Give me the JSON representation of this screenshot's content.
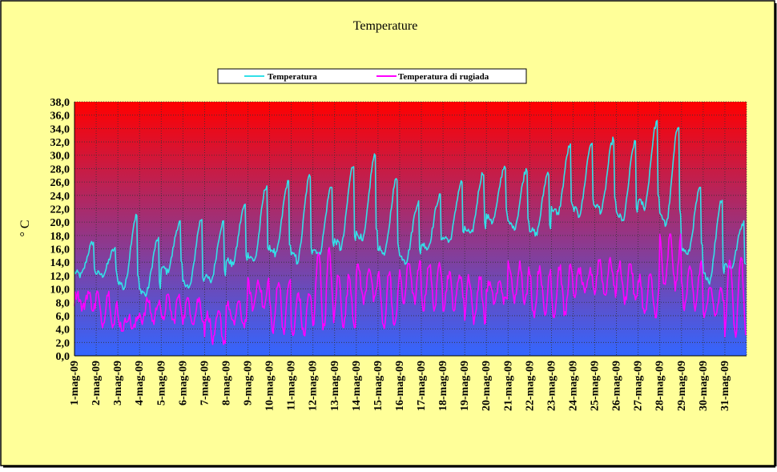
{
  "chart_data": {
    "type": "line",
    "title": "Temperature",
    "xlabel": "",
    "ylabel": "° C",
    "ylim": [
      0,
      38
    ],
    "ytick_step": 2,
    "yticks": [
      "0,0",
      "2,0",
      "4,0",
      "6,0",
      "8,0",
      "10,0",
      "12,0",
      "14,0",
      "16,0",
      "18,0",
      "20,0",
      "22,0",
      "24,0",
      "26,0",
      "28,0",
      "30,0",
      "32,0",
      "34,0",
      "36,0",
      "38,0"
    ],
    "categories": [
      "1-mag-09",
      "2-mag-09",
      "3-mag-09",
      "4-mag-09",
      "5-mag-09",
      "6-mag-09",
      "7-mag-09",
      "8-mag-09",
      "9-mag-09",
      "10-mag-09",
      "11-mag-09",
      "12-mag-09",
      "13-mag-09",
      "14-mag-09",
      "15-mag-09",
      "16-mag-09",
      "17-mag-09",
      "18-mag-09",
      "19-mag-09",
      "20-mag-09",
      "21-mag-09",
      "22-mag-09",
      "23-mag-09",
      "24-mag-09",
      "25-mag-09",
      "26-mag-09",
      "27-mag-09",
      "28-mag-09",
      "29-mag-09",
      "30-mag-09",
      "31-mag-09"
    ],
    "grid": true,
    "legend_position": "top-center",
    "series": [
      {
        "name": "Temperatura",
        "color": "#33e0e8",
        "daily_min": [
          12.0,
          12.0,
          10.0,
          9.0,
          12.5,
          10.0,
          11.0,
          13.5,
          14.0,
          15.0,
          14.0,
          15.0,
          16.0,
          17.0,
          15.0,
          14.0,
          16.0,
          17.0,
          18.0,
          20.0,
          19.0,
          18.0,
          21.0,
          21.0,
          21.5,
          20.0,
          22.0,
          19.5,
          15.0,
          11.0,
          13.0
        ],
        "daily_max": [
          17.0,
          16.0,
          21.0,
          17.5,
          20.0,
          20.5,
          20.0,
          22.5,
          25.5,
          26.0,
          27.0,
          25.5,
          28.5,
          30.0,
          26.5,
          23.0,
          24.0,
          26.0,
          27.5,
          28.5,
          28.0,
          27.5,
          31.5,
          32.0,
          32.5,
          32.0,
          35.0,
          34.5,
          25.0,
          23.5,
          20.0
        ]
      },
      {
        "name": "Temperatura di rugiada",
        "color": "#ff00ff",
        "daily_min": [
          7.0,
          4.5,
          4.0,
          5.0,
          5.0,
          5.0,
          2.0,
          4.5,
          7.0,
          3.5,
          3.0,
          4.0,
          4.5,
          8.0,
          4.0,
          8.0,
          7.0,
          7.0,
          5.0,
          8.0,
          8.0,
          6.0,
          6.0,
          9.0,
          9.0,
          8.0,
          6.0,
          10.0,
          7.0,
          6.0,
          3.0
        ],
        "daily_max": [
          9.5,
          9.5,
          6.0,
          8.5,
          9.0,
          8.5,
          6.5,
          8.0,
          11.5,
          11.5,
          9.5,
          16.0,
          12.0,
          13.5,
          12.5,
          14.0,
          14.0,
          12.5,
          12.0,
          11.0,
          14.0,
          13.5,
          13.5,
          13.0,
          14.5,
          14.0,
          12.0,
          18.0,
          14.0,
          10.0,
          15.0
        ]
      }
    ]
  },
  "colors": {
    "background": "#ffff99",
    "plot_top": "#ff0000",
    "plot_bottom": "#3366ff",
    "gridline": "#333333"
  }
}
